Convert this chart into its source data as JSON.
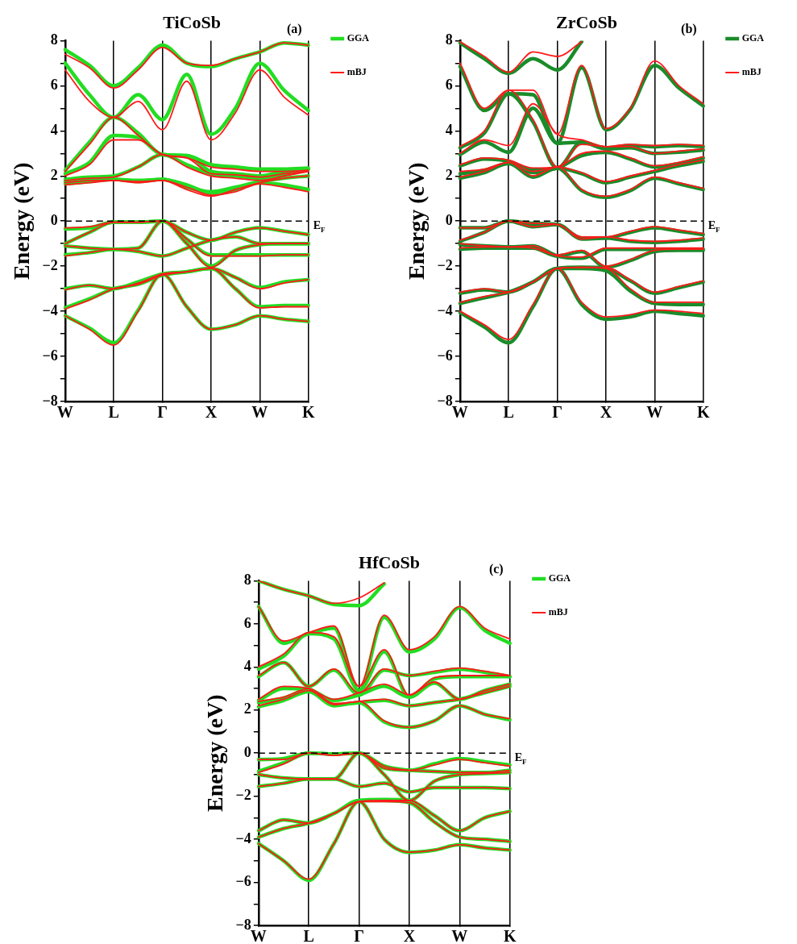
{
  "chart_data": [
    {
      "type": "line",
      "title": "TiCoSb",
      "ylabel": "Energy (eV)",
      "annotations": [
        "(a)"
      ],
      "legend": "right",
      "grid": "x",
      "ylim": [
        -8,
        8
      ],
      "categories": [
        "W",
        null,
        "L",
        null,
        "Γ",
        null,
        "X",
        null,
        "W",
        null,
        "K"
      ],
      "yticks": [
        -8,
        {
          "value": -7,
          "label": null
        },
        -6,
        {
          "value": -5,
          "label": null
        },
        -4,
        {
          "value": -3,
          "label": null
        },
        -2,
        {
          "value": -1,
          "label": null
        },
        0,
        {
          "value": 1,
          "label": null
        },
        2,
        {
          "value": 3,
          "label": null
        },
        4,
        {
          "value": 5,
          "label": null
        },
        6,
        {
          "value": 7,
          "label": null
        },
        8
      ],
      "ref_lines": [
        {
          "axis": "y",
          "value": 0,
          "label": "E$_{F}$",
          "line_style": "dashed",
          "color": "#000000"
        }
      ],
      "series": [
        {
          "name": "GGA",
          "color": "#22dd22",
          "values": [
            -4.2,
            -4.75,
            -5.4,
            -3.95,
            -2.35,
            -3.8,
            -4.8,
            -4.6,
            -4.2,
            -4.35,
            -4.45
          ]
        },
        {
          "color": "#22dd22",
          "values": [
            -3.85,
            -3.45,
            -3.0,
            -2.8,
            -2.4,
            -2.25,
            -2.1,
            -3.0,
            -3.8,
            -3.75,
            -3.75
          ]
        },
        {
          "color": "#22dd22",
          "values": [
            -3.0,
            -2.85,
            -3.0,
            -2.7,
            -2.35,
            -2.25,
            -2.1,
            -2.5,
            -2.95,
            -2.7,
            -2.6
          ]
        },
        {
          "color": "#22dd22",
          "values": [
            -1.5,
            -1.4,
            -1.25,
            -1.35,
            -1.55,
            -1.2,
            -0.85,
            -0.7,
            -1.0,
            -1.0,
            -1.0
          ]
        },
        {
          "color": "#22dd22",
          "values": [
            -1.1,
            -1.2,
            -1.25,
            -1.2,
            0,
            -0.8,
            -1.5,
            -1.5,
            -1.5,
            -1.5,
            -1.5
          ]
        },
        {
          "color": "#22dd22",
          "values": [
            -1.0,
            -0.5,
            -0.05,
            -0.05,
            0,
            -0.5,
            -0.85,
            -0.5,
            -0.3,
            -0.45,
            -0.6
          ]
        },
        {
          "color": "#22dd22",
          "values": [
            -0.35,
            -0.3,
            -0.05,
            -0.05,
            0,
            -1.0,
            -2.0,
            -1.3,
            -1.05,
            -1.0,
            -1.0
          ]
        },
        {
          "color": "#22dd22",
          "values": [
            1.65,
            1.75,
            1.85,
            1.75,
            1.85,
            1.5,
            1.3,
            1.5,
            1.75,
            1.9,
            2.0
          ]
        },
        {
          "color": "#22dd22",
          "values": [
            1.75,
            1.8,
            1.85,
            1.8,
            1.85,
            1.6,
            1.25,
            1.4,
            1.7,
            1.6,
            1.4
          ]
        },
        {
          "color": "#22dd22",
          "values": [
            1.85,
            1.95,
            2.0,
            2.4,
            2.95,
            2.5,
            2.1,
            2.0,
            1.9,
            2.05,
            2.3
          ]
        },
        {
          "color": "#22dd22",
          "values": [
            2.1,
            2.6,
            3.8,
            3.7,
            2.95,
            2.9,
            2.5,
            2.4,
            2.3,
            2.3,
            2.35
          ]
        },
        {
          "color": "#22dd22",
          "values": [
            2.25,
            3.5,
            4.6,
            3.9,
            2.95,
            2.9,
            2.2,
            2.1,
            2.0,
            2.2,
            2.3
          ]
        },
        {
          "color": "#22dd22",
          "values": [
            7.0,
            5.6,
            4.6,
            5.6,
            4.5,
            6.5,
            3.85,
            5.0,
            7.0,
            5.8,
            4.9
          ]
        },
        {
          "color": "#22dd22",
          "values": [
            7.6,
            6.9,
            6.0,
            6.8,
            7.8,
            7.0,
            6.85,
            7.2,
            7.5,
            7.9,
            7.8
          ]
        },
        {
          "name": "mBJ",
          "color": "#ff1a1a",
          "values": [
            -4.2,
            -4.8,
            -5.5,
            -4.0,
            -2.35,
            -3.8,
            -4.8,
            -4.6,
            -4.2,
            -4.35,
            -4.45
          ]
        },
        {
          "color": "#ff1a1a",
          "values": [
            -3.9,
            -3.5,
            -3.0,
            -2.8,
            -2.4,
            -2.25,
            -2.1,
            -3.0,
            -3.85,
            -3.8,
            -3.8
          ]
        },
        {
          "color": "#ff1a1a",
          "values": [
            -3.05,
            -2.85,
            -3.0,
            -2.75,
            -2.35,
            -2.25,
            -2.1,
            -2.5,
            -3.0,
            -2.75,
            -2.6
          ]
        },
        {
          "color": "#ff1a1a",
          "values": [
            -1.55,
            -1.4,
            -1.25,
            -1.35,
            -1.55,
            -1.2,
            -0.85,
            -0.7,
            -1.0,
            -1.0,
            -1.0
          ]
        },
        {
          "color": "#ff1a1a",
          "values": [
            -1.1,
            -1.2,
            -1.25,
            -1.2,
            0,
            -0.8,
            -1.55,
            -1.55,
            -1.55,
            -1.5,
            -1.5
          ]
        },
        {
          "color": "#ff1a1a",
          "values": [
            -1.0,
            -0.5,
            -0.05,
            -0.05,
            0,
            -0.5,
            -0.85,
            -0.5,
            -0.3,
            -0.45,
            -0.6
          ]
        },
        {
          "color": "#ff1a1a",
          "values": [
            -0.3,
            -0.25,
            -0.05,
            -0.05,
            0,
            -1.0,
            -2.05,
            -1.3,
            -1.05,
            -1.0,
            -1.0
          ]
        },
        {
          "color": "#ff1a1a",
          "values": [
            1.6,
            1.7,
            1.8,
            1.7,
            1.8,
            1.4,
            1.1,
            1.4,
            1.7,
            1.9,
            2.0
          ]
        },
        {
          "color": "#ff1a1a",
          "values": [
            1.7,
            1.8,
            1.8,
            1.75,
            1.8,
            1.5,
            1.15,
            1.3,
            1.65,
            1.5,
            1.3
          ]
        },
        {
          "color": "#ff1a1a",
          "values": [
            1.8,
            1.9,
            1.95,
            2.4,
            2.95,
            2.4,
            2.0,
            1.9,
            1.8,
            2.0,
            2.2
          ]
        },
        {
          "color": "#ff1a1a",
          "values": [
            2.0,
            2.5,
            3.6,
            3.6,
            2.95,
            2.8,
            2.4,
            2.3,
            2.2,
            2.2,
            2.25
          ]
        },
        {
          "color": "#ff1a1a",
          "values": [
            2.2,
            3.4,
            4.6,
            3.8,
            2.95,
            2.8,
            2.1,
            2.05,
            1.95,
            2.1,
            2.2
          ]
        },
        {
          "color": "#ff1a1a",
          "values": [
            6.7,
            5.3,
            4.6,
            5.3,
            4.05,
            6.2,
            3.6,
            4.8,
            6.7,
            5.5,
            4.7
          ]
        },
        {
          "color": "#ff1a1a",
          "values": [
            7.4,
            6.8,
            5.9,
            6.7,
            7.7,
            7.0,
            6.9,
            7.2,
            7.5,
            7.9,
            7.8
          ]
        }
      ]
    },
    {
      "type": "line",
      "title": "ZrCoSb",
      "ylabel": "Energy (eV)",
      "annotations": [
        "(b)"
      ],
      "legend": "right",
      "grid": "x",
      "ylim": [
        -8,
        8
      ],
      "categories": [
        "W",
        null,
        "L",
        null,
        "Γ",
        null,
        "X",
        null,
        "W",
        null,
        "K"
      ],
      "yticks": [
        -8,
        {
          "value": -7,
          "label": null
        },
        -6,
        {
          "value": -5,
          "label": null
        },
        -4,
        {
          "value": -3,
          "label": null
        },
        -2,
        {
          "value": -1,
          "label": null
        },
        0,
        {
          "value": 1,
          "label": null
        },
        2,
        {
          "value": 3,
          "label": null
        },
        4,
        {
          "value": 5,
          "label": null
        },
        6,
        {
          "value": 7,
          "label": null
        },
        8
      ],
      "ref_lines": [
        {
          "axis": "y",
          "value": 0,
          "label": "E$_{F}$",
          "line_style": "dashed",
          "color": "#000000"
        }
      ],
      "series": [
        {
          "name": "GGA",
          "color": "#1a8c2a",
          "values": [
            -4.05,
            -4.7,
            -5.4,
            -3.8,
            -2.1,
            -3.7,
            -4.35,
            -4.25,
            -4.0,
            -4.1,
            -4.2
          ]
        },
        {
          "color": "#1a8c2a",
          "values": [
            -3.65,
            -3.4,
            -3.15,
            -2.7,
            -2.1,
            -2.05,
            -2.1,
            -2.65,
            -3.2,
            -2.95,
            -2.7
          ]
        },
        {
          "color": "#1a8c2a",
          "values": [
            -3.2,
            -3.05,
            -3.15,
            -2.7,
            -2.1,
            -2.1,
            -2.2,
            -3.1,
            -3.65,
            -3.7,
            -3.7
          ]
        },
        {
          "color": "#1a8c2a",
          "values": [
            -1.25,
            -1.2,
            -1.2,
            -1.2,
            -1.55,
            -1.35,
            -2.05,
            -1.75,
            -1.35,
            -1.3,
            -1.3
          ]
        },
        {
          "color": "#1a8c2a",
          "values": [
            -1.05,
            -1.1,
            -1.15,
            -1.1,
            -1.55,
            -1.65,
            -1.25,
            -1.25,
            -1.25,
            -1.25,
            -1.25
          ]
        },
        {
          "color": "#1a8c2a",
          "values": [
            -0.9,
            -0.5,
            0,
            -0.25,
            -0.15,
            -0.8,
            -0.75,
            -0.9,
            -0.95,
            -0.9,
            -0.8
          ]
        },
        {
          "color": "#1a8c2a",
          "values": [
            -0.3,
            -0.3,
            0,
            -0.1,
            -0.15,
            -0.75,
            -0.75,
            -0.5,
            -0.3,
            -0.45,
            -0.6
          ]
        },
        {
          "color": "#1a8c2a",
          "values": [
            1.9,
            2.15,
            2.55,
            2.15,
            2.35,
            1.35,
            1.05,
            1.35,
            1.9,
            1.65,
            1.4
          ]
        },
        {
          "color": "#1a8c2a",
          "values": [
            2.1,
            2.25,
            2.55,
            1.95,
            2.35,
            2.1,
            1.7,
            1.95,
            2.2,
            2.45,
            2.65
          ]
        },
        {
          "color": "#1a8c2a",
          "values": [
            2.45,
            2.75,
            2.65,
            2.25,
            2.35,
            2.9,
            3.05,
            2.75,
            2.4,
            2.55,
            2.8
          ]
        },
        {
          "color": "#1a8c2a",
          "values": [
            2.95,
            3.5,
            3.05,
            5.0,
            3.45,
            3.5,
            3.2,
            3.25,
            3.0,
            3.05,
            3.15
          ]
        },
        {
          "color": "#1a8c2a",
          "values": [
            3.25,
            3.9,
            5.65,
            4.4,
            2.35,
            3.5,
            3.25,
            3.35,
            3.3,
            3.35,
            3.3
          ]
        },
        {
          "color": "#1a8c2a",
          "values": [
            6.85,
            4.9,
            5.65,
            5.6,
            3.45,
            6.8,
            4.05,
            4.95,
            6.9,
            5.9,
            5.1
          ]
        },
        {
          "color": "#1a8c2a",
          "values": [
            7.9,
            7.2,
            6.55,
            7.2,
            6.7,
            7.95,
            null,
            null,
            null,
            null,
            null
          ]
        },
        {
          "name": "mBJ",
          "color": "#ff1a1a",
          "values": [
            -4.0,
            -4.6,
            -5.25,
            -3.7,
            -2.1,
            -3.6,
            -4.25,
            -4.15,
            -3.95,
            -4.0,
            -4.1
          ]
        },
        {
          "color": "#ff1a1a",
          "values": [
            -3.6,
            -3.35,
            -3.15,
            -2.7,
            -2.1,
            -2.05,
            -2.05,
            -2.6,
            -3.15,
            -2.9,
            -2.65
          ]
        },
        {
          "color": "#ff1a1a",
          "values": [
            -3.15,
            -3.0,
            -3.15,
            -2.7,
            -2.1,
            -2.05,
            -2.1,
            -3.0,
            -3.6,
            -3.6,
            -3.6
          ]
        },
        {
          "color": "#ff1a1a",
          "values": [
            -1.2,
            -1.15,
            -1.15,
            -1.2,
            -1.5,
            -1.3,
            -2.0,
            -1.7,
            -1.3,
            -1.25,
            -1.25
          ]
        },
        {
          "color": "#ff1a1a",
          "values": [
            -1.0,
            -1.1,
            -1.15,
            -1.1,
            -1.55,
            -1.6,
            -1.2,
            -1.2,
            -1.2,
            -1.2,
            -1.2
          ]
        },
        {
          "color": "#ff1a1a",
          "values": [
            -0.85,
            -0.5,
            0,
            -0.25,
            -0.15,
            -0.8,
            -0.7,
            -0.85,
            -0.9,
            -0.85,
            -0.75
          ]
        },
        {
          "color": "#ff1a1a",
          "values": [
            -0.3,
            -0.3,
            0,
            -0.1,
            -0.15,
            -0.7,
            -0.7,
            -0.45,
            -0.25,
            -0.4,
            -0.55
          ]
        },
        {
          "color": "#ff1a1a",
          "values": [
            1.95,
            2.2,
            2.6,
            2.2,
            2.4,
            1.4,
            1.1,
            1.4,
            1.95,
            1.7,
            1.45
          ]
        },
        {
          "color": "#ff1a1a",
          "values": [
            2.2,
            2.3,
            2.6,
            2.0,
            2.4,
            2.15,
            1.75,
            2.0,
            2.25,
            2.5,
            2.7
          ]
        },
        {
          "color": "#ff1a1a",
          "values": [
            2.5,
            2.8,
            2.7,
            2.35,
            2.4,
            3.0,
            3.1,
            2.8,
            2.45,
            2.6,
            2.85
          ]
        },
        {
          "color": "#ff1a1a",
          "values": [
            3.0,
            3.6,
            3.35,
            5.2,
            3.85,
            3.6,
            3.3,
            3.3,
            3.0,
            3.1,
            3.2
          ]
        },
        {
          "color": "#ff1a1a",
          "values": [
            3.3,
            4.0,
            5.8,
            4.5,
            2.4,
            3.4,
            3.3,
            3.4,
            3.35,
            3.4,
            3.35
          ]
        },
        {
          "color": "#ff1a1a",
          "values": [
            7.0,
            5.0,
            5.8,
            5.8,
            3.85,
            6.9,
            4.1,
            5.0,
            7.1,
            6.0,
            5.2
          ]
        },
        {
          "color": "#ff1a1a",
          "values": [
            7.95,
            7.3,
            6.6,
            7.5,
            7.3,
            7.95,
            null,
            null,
            null,
            null,
            null
          ]
        }
      ]
    },
    {
      "type": "line",
      "title": "HfCoSb",
      "ylabel": "Energy (eV)",
      "annotations": [
        "(c)"
      ],
      "legend": "right",
      "grid": "x",
      "ylim": [
        -8,
        8
      ],
      "categories": [
        "W",
        null,
        "L",
        null,
        "Γ",
        null,
        "X",
        null,
        "W",
        null,
        "K"
      ],
      "yticks": [
        -8,
        {
          "value": -7,
          "label": null
        },
        -6,
        {
          "value": -5,
          "label": null
        },
        -4,
        {
          "value": -3,
          "label": null
        },
        -2,
        {
          "value": -1,
          "label": null
        },
        0,
        {
          "value": 1,
          "label": null
        },
        2,
        {
          "value": 3,
          "label": null
        },
        4,
        {
          "value": 5,
          "label": null
        },
        6,
        {
          "value": 7,
          "label": null
        },
        8
      ],
      "ref_lines": [
        {
          "axis": "y",
          "value": 0,
          "label": "E$_{F}$",
          "line_style": "dashed",
          "color": "#000000"
        }
      ],
      "series": [
        {
          "name": "GGA",
          "color": "#22dd22",
          "values": [
            -4.2,
            -5.0,
            -5.9,
            -4.2,
            -2.25,
            -4.0,
            -4.6,
            -4.5,
            -4.25,
            -4.4,
            -4.5
          ]
        },
        {
          "color": "#22dd22",
          "values": [
            -3.9,
            -3.5,
            -3.25,
            -2.8,
            -2.2,
            -2.15,
            -2.2,
            -2.9,
            -3.6,
            -3.0,
            -2.7
          ]
        },
        {
          "color": "#22dd22",
          "values": [
            -3.6,
            -3.1,
            -3.25,
            -2.8,
            -2.2,
            -2.2,
            -2.3,
            -3.2,
            -3.9,
            -4.0,
            -4.1
          ]
        },
        {
          "color": "#22dd22",
          "values": [
            -1.55,
            -1.4,
            -1.2,
            -1.2,
            -1.55,
            -1.4,
            -1.8,
            -1.6,
            -1.6,
            -1.6,
            -1.65
          ]
        },
        {
          "color": "#22dd22",
          "values": [
            -1.0,
            -1.15,
            -1.2,
            -1.2,
            0,
            -1.0,
            -2.2,
            -1.3,
            -1.0,
            -0.95,
            -0.9
          ]
        },
        {
          "color": "#22dd22",
          "values": [
            -0.85,
            -0.45,
            0,
            -0.05,
            0,
            -0.6,
            -0.8,
            -0.85,
            -0.9,
            -0.9,
            -0.8
          ]
        },
        {
          "color": "#22dd22",
          "values": [
            -0.3,
            -0.25,
            0,
            -0.05,
            0,
            -0.7,
            -0.8,
            -0.5,
            -0.25,
            -0.4,
            -0.55
          ]
        },
        {
          "color": "#22dd22",
          "values": [
            2.15,
            2.45,
            2.85,
            2.2,
            2.35,
            1.45,
            1.2,
            1.5,
            2.2,
            1.8,
            1.55
          ]
        },
        {
          "color": "#22dd22",
          "values": [
            2.35,
            2.55,
            2.95,
            2.25,
            2.35,
            2.45,
            2.2,
            2.35,
            2.5,
            2.8,
            3.1
          ]
        },
        {
          "color": "#22dd22",
          "values": [
            2.45,
            3.0,
            2.95,
            2.45,
            2.7,
            3.1,
            2.6,
            3.45,
            3.55,
            3.55,
            3.55
          ]
        },
        {
          "color": "#22dd22",
          "values": [
            3.55,
            4.2,
            3.1,
            3.85,
            2.7,
            3.85,
            3.6,
            3.75,
            3.9,
            3.75,
            3.55
          ]
        },
        {
          "color": "#22dd22",
          "values": [
            3.9,
            4.5,
            5.55,
            5.3,
            2.9,
            4.7,
            2.6,
            3.25,
            2.5,
            2.9,
            3.2
          ]
        },
        {
          "color": "#22dd22",
          "values": [
            6.8,
            5.1,
            5.55,
            5.8,
            2.9,
            6.3,
            4.7,
            5.3,
            6.75,
            5.7,
            5.1
          ]
        },
        {
          "color": "#22dd22",
          "values": [
            8.0,
            7.6,
            7.3,
            6.9,
            6.85,
            7.85,
            null,
            null,
            null,
            null,
            null
          ]
        },
        {
          "name": "mBJ",
          "color": "#ff1a1a",
          "values": [
            -4.2,
            -5.0,
            -5.85,
            -4.2,
            -2.25,
            -4.0,
            -4.6,
            -4.5,
            -4.25,
            -4.4,
            -4.5
          ]
        },
        {
          "color": "#ff1a1a",
          "values": [
            -3.9,
            -3.5,
            -3.25,
            -2.8,
            -2.25,
            -2.2,
            -2.2,
            -2.9,
            -3.6,
            -3.0,
            -2.7
          ]
        },
        {
          "color": "#ff1a1a",
          "values": [
            -3.6,
            -3.1,
            -3.25,
            -2.8,
            -2.25,
            -2.25,
            -2.3,
            -3.2,
            -3.9,
            -4.0,
            -4.1
          ]
        },
        {
          "color": "#ff1a1a",
          "values": [
            -1.55,
            -1.4,
            -1.2,
            -1.2,
            -1.55,
            -1.4,
            -1.8,
            -1.6,
            -1.6,
            -1.6,
            -1.65
          ]
        },
        {
          "color": "#ff1a1a",
          "values": [
            -1.0,
            -1.15,
            -1.2,
            -1.2,
            0,
            -1.0,
            -2.2,
            -1.3,
            -1.0,
            -0.95,
            -0.9
          ]
        },
        {
          "color": "#ff1a1a",
          "values": [
            -0.9,
            -0.5,
            0,
            -0.1,
            0,
            -0.6,
            -0.8,
            -0.85,
            -0.9,
            -0.9,
            -0.8
          ]
        },
        {
          "color": "#ff1a1a",
          "values": [
            -0.3,
            -0.3,
            0,
            -0.1,
            0,
            -0.7,
            -0.8,
            -0.55,
            -0.3,
            -0.45,
            -0.6
          ]
        },
        {
          "color": "#ff1a1a",
          "values": [
            2.2,
            2.5,
            2.9,
            2.25,
            2.4,
            1.5,
            1.2,
            1.5,
            2.2,
            1.8,
            1.6
          ]
        },
        {
          "color": "#ff1a1a",
          "values": [
            2.4,
            2.6,
            3.0,
            2.3,
            2.4,
            2.5,
            2.2,
            2.35,
            2.5,
            2.8,
            3.1
          ]
        },
        {
          "color": "#ff1a1a",
          "values": [
            2.5,
            3.1,
            3.0,
            2.5,
            2.8,
            3.2,
            2.7,
            3.5,
            3.6,
            3.6,
            3.6
          ]
        },
        {
          "color": "#ff1a1a",
          "values": [
            3.6,
            4.2,
            3.1,
            3.9,
            2.8,
            3.9,
            3.6,
            3.8,
            3.95,
            3.8,
            3.6
          ]
        },
        {
          "color": "#ff1a1a",
          "values": [
            4.0,
            4.6,
            5.6,
            5.4,
            3.1,
            4.8,
            2.7,
            3.3,
            2.5,
            2.9,
            3.2
          ]
        },
        {
          "color": "#ff1a1a",
          "values": [
            6.8,
            5.2,
            5.6,
            5.9,
            3.1,
            6.4,
            4.8,
            5.4,
            6.8,
            5.8,
            5.3
          ]
        },
        {
          "color": "#ff1a1a",
          "values": [
            8.0,
            7.6,
            7.3,
            6.95,
            7.2,
            7.9,
            null,
            null,
            null,
            null,
            null
          ]
        }
      ]
    }
  ]
}
